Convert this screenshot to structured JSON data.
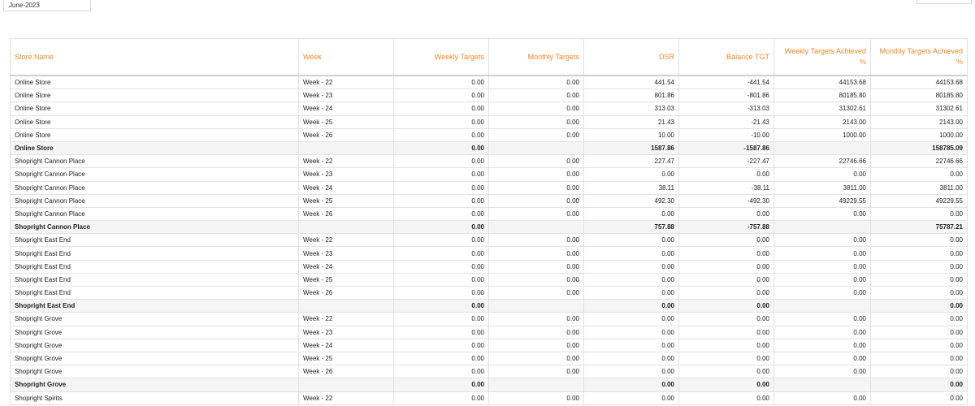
{
  "filter": {
    "month": "June-2023"
  },
  "table": {
    "columns": [
      "Store Name",
      "Week",
      "Weekly Targets",
      "Monthly Targets",
      "DSR",
      "Balance TGT",
      "Weekly Targets Achieved %",
      "Monthly Targets Achieved %"
    ],
    "rows": [
      {
        "type": "row",
        "cells": [
          "Online Store",
          "Week - 22",
          "0.00",
          "0.00",
          "441.54",
          "-441.54",
          "44153.68",
          "44153.68"
        ]
      },
      {
        "type": "row",
        "cells": [
          "Online Store",
          "Week - 23",
          "0.00",
          "0.00",
          "801.86",
          "-801.86",
          "80185.80",
          "80185.80"
        ]
      },
      {
        "type": "row",
        "cells": [
          "Online Store",
          "Week - 24",
          "0.00",
          "0.00",
          "313.03",
          "-313.03",
          "31302.61",
          "31302.61"
        ]
      },
      {
        "type": "row",
        "cells": [
          "Online Store",
          "Week - 25",
          "0.00",
          "0.00",
          "21.43",
          "-21.43",
          "2143.00",
          "2143.00"
        ]
      },
      {
        "type": "row",
        "cells": [
          "Online Store",
          "Week - 26",
          "0.00",
          "0.00",
          "10.00",
          "-10.00",
          "1000.00",
          "1000.00"
        ]
      },
      {
        "type": "total",
        "cells": [
          "Online Store",
          "",
          "0.00",
          "",
          "1587.86",
          "-1587.86",
          "",
          "158785.09"
        ]
      },
      {
        "type": "row",
        "cells": [
          "Shopright Cannon Place",
          "Week - 22",
          "0.00",
          "0.00",
          "227.47",
          "-227.47",
          "22746.66",
          "22746.66"
        ]
      },
      {
        "type": "row",
        "cells": [
          "Shopright Cannon Place",
          "Week - 23",
          "0.00",
          "0.00",
          "0.00",
          "0.00",
          "0.00",
          "0.00"
        ]
      },
      {
        "type": "row",
        "cells": [
          "Shopright Cannon Place",
          "Week - 24",
          "0.00",
          "0.00",
          "38.11",
          "-38.11",
          "3811.00",
          "3811.00"
        ]
      },
      {
        "type": "row",
        "cells": [
          "Shopright Cannon Place",
          "Week - 25",
          "0.00",
          "0.00",
          "492.30",
          "-492.30",
          "49229.55",
          "49229.55"
        ]
      },
      {
        "type": "row",
        "cells": [
          "Shopright Cannon Place",
          "Week - 26",
          "0.00",
          "0.00",
          "0.00",
          "0.00",
          "0.00",
          "0.00"
        ]
      },
      {
        "type": "total",
        "cells": [
          "Shopright Cannon Place",
          "",
          "0.00",
          "",
          "757.88",
          "-757.88",
          "",
          "75787.21"
        ]
      },
      {
        "type": "row",
        "cells": [
          "Shopright East End",
          "Week - 22",
          "0.00",
          "0.00",
          "0.00",
          "0.00",
          "0.00",
          "0.00"
        ]
      },
      {
        "type": "row",
        "cells": [
          "Shopright East End",
          "Week - 23",
          "0.00",
          "0.00",
          "0.00",
          "0.00",
          "0.00",
          "0.00"
        ]
      },
      {
        "type": "row",
        "cells": [
          "Shopright East End",
          "Week - 24",
          "0.00",
          "0.00",
          "0.00",
          "0.00",
          "0.00",
          "0.00"
        ]
      },
      {
        "type": "row",
        "cells": [
          "Shopright East End",
          "Week - 25",
          "0.00",
          "0.00",
          "0.00",
          "0.00",
          "0.00",
          "0.00"
        ]
      },
      {
        "type": "row",
        "cells": [
          "Shopright East End",
          "Week - 26",
          "0.00",
          "0.00",
          "0.00",
          "0.00",
          "0.00",
          "0.00"
        ]
      },
      {
        "type": "total",
        "cells": [
          "Shopright East End",
          "",
          "0.00",
          "",
          "0.00",
          "0.00",
          "",
          "0.00"
        ]
      },
      {
        "type": "row",
        "cells": [
          "Shopright Grove",
          "Week - 22",
          "0.00",
          "0.00",
          "0.00",
          "0.00",
          "0.00",
          "0.00"
        ]
      },
      {
        "type": "row",
        "cells": [
          "Shopright Grove",
          "Week - 23",
          "0.00",
          "0.00",
          "0.00",
          "0.00",
          "0.00",
          "0.00"
        ]
      },
      {
        "type": "row",
        "cells": [
          "Shopright Grove",
          "Week - 24",
          "0.00",
          "0.00",
          "0.00",
          "0.00",
          "0.00",
          "0.00"
        ]
      },
      {
        "type": "row",
        "cells": [
          "Shopright Grove",
          "Week - 25",
          "0.00",
          "0.00",
          "0.00",
          "0.00",
          "0.00",
          "0.00"
        ]
      },
      {
        "type": "row",
        "cells": [
          "Shopright Grove",
          "Week - 26",
          "0.00",
          "0.00",
          "0.00",
          "0.00",
          "0.00",
          "0.00"
        ]
      },
      {
        "type": "total",
        "cells": [
          "Shopright Grove",
          "",
          "0.00",
          "",
          "0.00",
          "0.00",
          "",
          "0.00"
        ]
      },
      {
        "type": "row",
        "cells": [
          "Shopright Spirits",
          "Week - 22",
          "0.00",
          "0.00",
          "0.00",
          "0.00",
          "0.00",
          "0.00"
        ]
      }
    ]
  }
}
